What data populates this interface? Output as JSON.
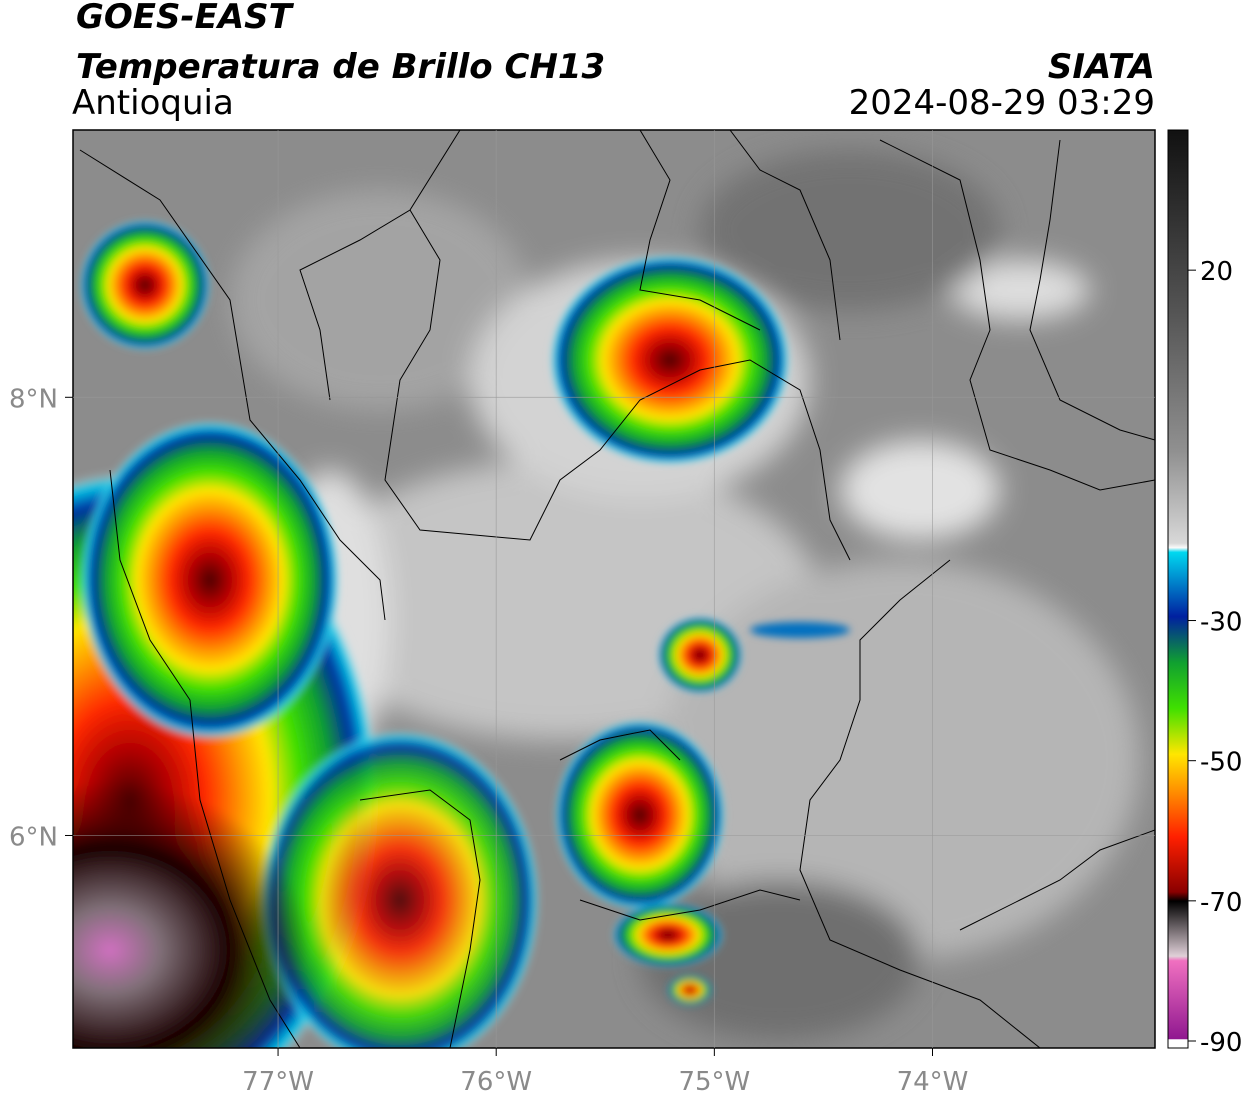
{
  "header": {
    "title": "GOES-EAST",
    "subtitle": "Temperatura de Brillo CH13",
    "region": "Antioquia",
    "source": "SIATA",
    "datetime": "2024-08-29 03:29"
  },
  "map": {
    "xlim": [
      -77.94,
      -72.98
    ],
    "ylim": [
      5.03,
      9.22
    ],
    "xticks": [
      {
        "value": -77,
        "label": "77°W"
      },
      {
        "value": -76,
        "label": "76°W"
      },
      {
        "value": -75,
        "label": "75°W"
      },
      {
        "value": -74,
        "label": "74°W"
      }
    ],
    "yticks": [
      {
        "value": 8,
        "label": "8°N"
      },
      {
        "value": 6,
        "label": "6°N"
      }
    ],
    "grid": true
  },
  "colorbar": {
    "lim": [
      -91,
      40
    ],
    "ticks": [
      20,
      -30,
      -50,
      -70,
      -90
    ]
  }
}
